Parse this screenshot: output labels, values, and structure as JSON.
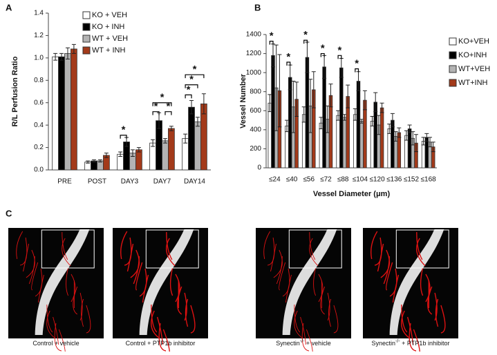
{
  "chart_data": [
    {
      "type": "bar",
      "panel": "A",
      "y_label": "R/L Perfusion Ratio",
      "categories": [
        "PRE",
        "POST",
        "DAY3",
        "DAY7",
        "DAY14"
      ],
      "ylim": [
        0,
        1.4
      ],
      "yticks": [
        {
          "value": 0,
          "label": "0.0"
        },
        {
          "value": 0.2,
          "label": "0.2"
        },
        {
          "value": 0.4,
          "label": "0.4"
        },
        {
          "value": 0.6,
          "label": "0.6"
        },
        {
          "value": 0.8,
          "label": "0.8"
        },
        {
          "value": 1,
          "label": "1.0"
        },
        {
          "value": 1.2,
          "label": "1.2"
        },
        {
          "value": 1.4,
          "label": "1.4"
        }
      ],
      "series": [
        {
          "name": "KO + VEH",
          "color": "#ffffff",
          "values": [
            1.01,
            0.07,
            0.14,
            0.24,
            0.28
          ],
          "errors": [
            0.03,
            0.01,
            0.02,
            0.03,
            0.04
          ]
        },
        {
          "name": "KO + INH",
          "color": "#000000",
          "values": [
            1.01,
            0.08,
            0.25,
            0.44,
            0.56
          ],
          "errors": [
            0.03,
            0.01,
            0.04,
            0.07,
            0.06
          ]
        },
        {
          "name": "WT + VEH",
          "color": "#b3b3b3",
          "values": [
            1.04,
            0.08,
            0.15,
            0.26,
            0.43
          ],
          "errors": [
            0.05,
            0.01,
            0.03,
            0.02,
            0.04
          ]
        },
        {
          "name": "WT + INH",
          "color": "#a33a1a",
          "values": [
            1.08,
            0.13,
            0.18,
            0.37,
            0.59
          ],
          "errors": [
            0.04,
            0.02,
            0.02,
            0.02,
            0.09
          ]
        }
      ],
      "annotations": [
        "*",
        "*",
        "*",
        "*",
        "*",
        "*",
        "*"
      ]
    },
    {
      "type": "bar",
      "panel": "B",
      "y_label": "Vessel Number",
      "x_label": "Vessel Diameter (μm)",
      "categories": [
        "≤24",
        "≤40",
        "≤56",
        "≤72",
        "≤88",
        "≤104",
        "≤120",
        "≤136",
        "≤152",
        "≤168"
      ],
      "ylim": [
        0,
        1400
      ],
      "yticks": [
        0,
        200,
        400,
        600,
        800,
        1000,
        1200,
        1400
      ],
      "series": [
        {
          "name": "KO+VEH",
          "color": "#ffffff",
          "values": [
            680,
            440,
            560,
            470,
            550,
            560,
            490,
            410,
            340,
            280
          ],
          "errors": [
            90,
            60,
            80,
            60,
            50,
            60,
            50,
            50,
            50,
            40
          ]
        },
        {
          "name": "KO+INH",
          "color": "#000000",
          "values": [
            1180,
            950,
            1160,
            1060,
            1050,
            910,
            690,
            500,
            410,
            320
          ],
          "errors": [
            120,
            130,
            160,
            120,
            100,
            100,
            100,
            70,
            40,
            40
          ]
        },
        {
          "name": "WT+VEH",
          "color": "#b3b3b3",
          "values": [
            840,
            640,
            650,
            510,
            530,
            490,
            450,
            330,
            310,
            270
          ],
          "errors": [
            450,
            270,
            280,
            140,
            30,
            20,
            100,
            50,
            70,
            50
          ]
        },
        {
          "name": "WT+INH",
          "color": "#a33a1a",
          "values": [
            810,
            720,
            820,
            760,
            750,
            710,
            630,
            370,
            260,
            220
          ],
          "errors": [
            380,
            180,
            190,
            120,
            120,
            100,
            50,
            50,
            90,
            50
          ]
        }
      ],
      "annotations": [
        "*",
        "*",
        "*",
        "*",
        "*",
        "*"
      ]
    }
  ],
  "panel_c": {
    "label": "C",
    "captions": [
      {
        "text": "Control + vehicle"
      },
      {
        "text": "Control + PTP1b inhibitor"
      },
      {
        "text": "Synectin",
        "sup": "-/-",
        "rest": " + vehicle"
      },
      {
        "text": "Synectin",
        "sup": "-/-",
        "rest": " + PTP1b inhibitor"
      }
    ]
  }
}
